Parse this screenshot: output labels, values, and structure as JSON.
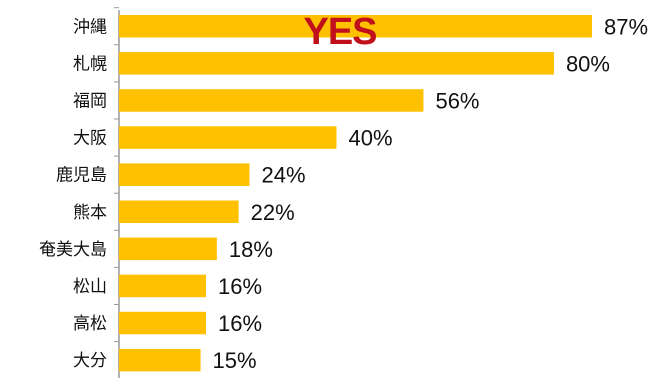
{
  "chart_data": {
    "type": "bar",
    "orientation": "horizontal",
    "annotation": "YES",
    "categories": [
      "沖縄",
      "札幌",
      "福岡",
      "大阪",
      "鹿児島",
      "熊本",
      "奄美大島",
      "松山",
      "高松",
      "大分"
    ],
    "values": [
      87,
      80,
      56,
      40,
      24,
      22,
      18,
      16,
      16,
      15
    ],
    "value_labels": [
      "87%",
      "80%",
      "56%",
      "40%",
      "24%",
      "22%",
      "18%",
      "16%",
      "16%",
      "15%"
    ],
    "xlim": [
      0,
      100
    ],
    "grid": false,
    "legend": "none",
    "colors": {
      "bar": "#FFC000",
      "axis": "#9a9a9a",
      "annotation": "#C0101C",
      "text": "#111111"
    }
  }
}
